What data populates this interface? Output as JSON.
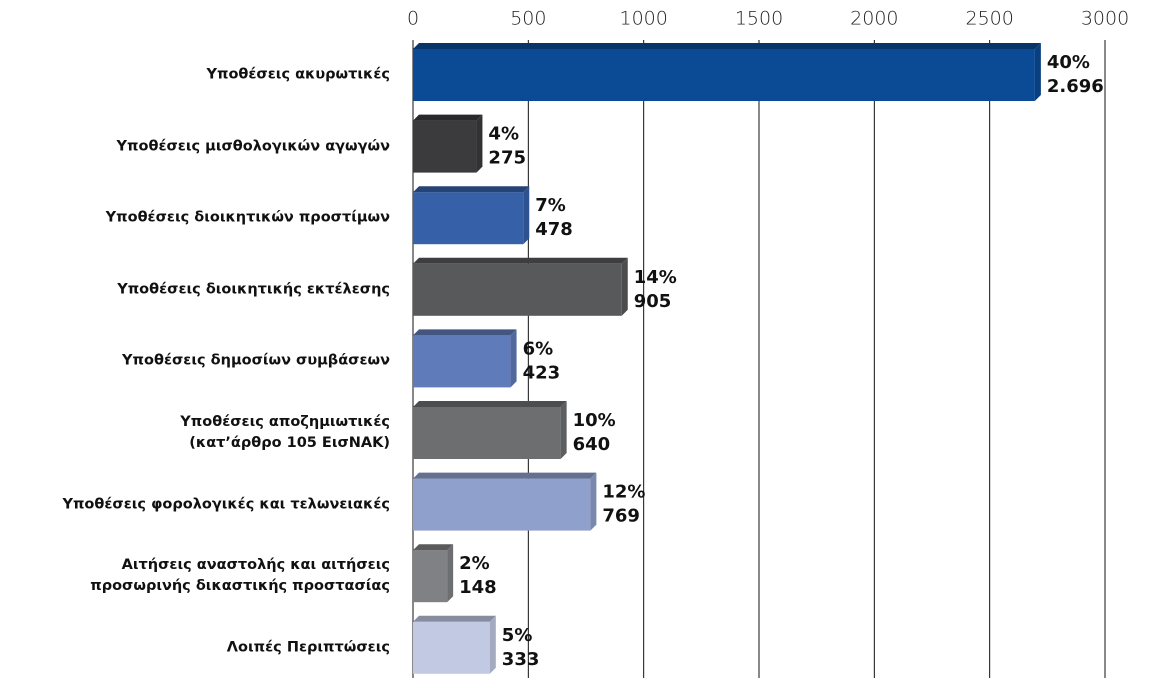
{
  "chart_data": {
    "type": "hbar",
    "categories": [
      "Υποθέσεις ακυρωτικές",
      "Υποθέσεις μισθολογικών αγωγών",
      "Υποθέσεις διοικητικών προστίμων",
      "Υποθέσεις διοικητικής εκτέλεσης",
      "Υποθέσεις δημοσίων συμβάσεων",
      "Υποθέσεις αποζημιωτικές\n(κατ’άρθρο 105 ΕισΝΑΚ)",
      "Υποθέσεις φορολογικές και τελωνειακές",
      "Αιτήσεις αναστολής και αιτήσεις\nπροσωρινής δικαστικής προστασίας",
      "Λοιπές Περιπτώσεις"
    ],
    "values": [
      2696,
      275,
      478,
      905,
      423,
      640,
      769,
      148,
      333
    ],
    "value_labels": [
      "2.696",
      "275",
      "478",
      "905",
      "423",
      "640",
      "769",
      "148",
      "333"
    ],
    "share_labels": [
      "40%",
      "4%",
      "7%",
      "14%",
      "6%",
      "10%",
      "12%",
      "2%",
      "5%"
    ],
    "colors": [
      "#0b4a95",
      "#3b3b3d",
      "#3660a8",
      "#58595b",
      "#607bb9",
      "#6d6e70",
      "#8fa0cc",
      "#808184",
      "#c1c9e3"
    ],
    "xlim": [
      0,
      3000
    ],
    "xticks": [
      0,
      500,
      1000,
      1500,
      2000,
      2500,
      3000
    ],
    "grid": true
  }
}
